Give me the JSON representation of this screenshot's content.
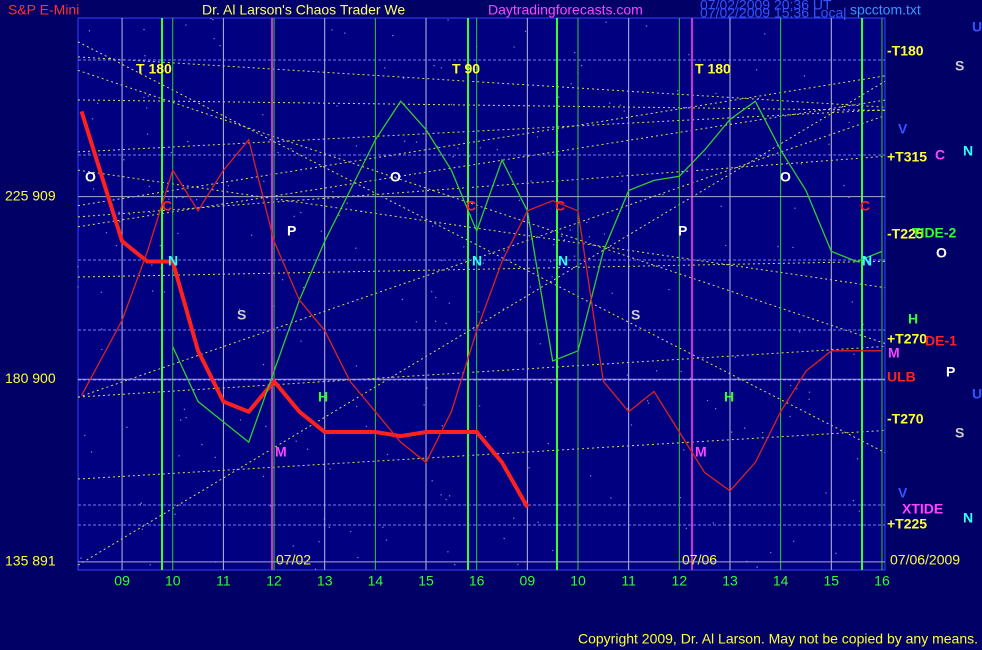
{
  "chart_data": {
    "type": "line",
    "title": "Dr. Al Larson's Chaos Trader We",
    "symbol": "S&P E-Mini",
    "site": "Daytradingforecasts.com",
    "file": "spcctom.txt",
    "stamp": [
      "07/02/2009 20:36 UT",
      "07/02/2009 15:36 Local"
    ],
    "copyright": "Copyright 2009, Dr. Al Larson. May not be copied by any means.",
    "date_labels": [
      "07/02",
      "07/06",
      "07/06/2009"
    ],
    "x": [
      -0.8,
      0,
      0.5,
      1,
      1.5,
      2,
      2.5,
      3,
      3.5,
      4,
      4.5,
      5,
      5.5,
      6,
      6.5,
      7,
      7.5,
      8,
      8.5,
      9,
      9.5,
      10,
      10.5,
      11,
      11.5,
      12,
      12.5,
      13,
      13.5,
      14,
      14.5,
      15
    ],
    "xlim": [
      -0.87,
      15.06
    ],
    "xticks": [
      {
        "value": 0,
        "label": "09"
      },
      {
        "value": 1,
        "label": "10"
      },
      {
        "value": 2,
        "label": "11"
      },
      {
        "value": 3,
        "label": "12"
      },
      {
        "value": 4,
        "label": "13"
      },
      {
        "value": 5,
        "label": "14"
      },
      {
        "value": 6,
        "label": "15"
      },
      {
        "value": 7,
        "label": "16"
      },
      {
        "value": 8,
        "label": "09"
      },
      {
        "value": 9,
        "label": "10"
      },
      {
        "value": 10,
        "label": "11"
      },
      {
        "value": 11,
        "label": "12"
      },
      {
        "value": 12,
        "label": "13"
      },
      {
        "value": 13,
        "label": "14"
      },
      {
        "value": 14,
        "label": "15"
      },
      {
        "value": 15,
        "label": "16"
      }
    ],
    "ylim": [
      890.6,
      917.8
    ],
    "yticks": [
      {
        "value": 909,
        "label": "225  909"
      },
      {
        "value": 900,
        "label": "180  900"
      },
      {
        "value": 891,
        "label": "135  891"
      }
    ],
    "series": [
      {
        "color": "#ff2020",
        "values": [
          913.2,
          906.8,
          905.8,
          905.8,
          901.4,
          898.9,
          898.4,
          899.9,
          898.4,
          897.4,
          897.4,
          897.4,
          897.2,
          897.4,
          897.4,
          897.4,
          895.9,
          893.7,
          null,
          null,
          null,
          null,
          null,
          null,
          null,
          null,
          null,
          null,
          null,
          null,
          null,
          null
        ]
      },
      {
        "color": "#33cc33",
        "values": [
          null,
          null,
          null,
          901.6,
          898.9,
          897.9,
          896.9,
          900.4,
          903.9,
          906.8,
          909.3,
          911.8,
          913.7,
          912.3,
          910.3,
          907.3,
          910.8,
          908.3,
          900.9,
          901.4,
          906.3,
          909.3,
          909.8,
          910.0,
          911.3,
          912.8,
          913.7,
          911.3,
          909.3,
          906.3,
          905.8,
          906.3
        ]
      },
      {
        "color": "#dd2222",
        "values": [
          899.2,
          902.9,
          906.3,
          910.3,
          908.3,
          910.3,
          911.8,
          906.8,
          903.9,
          902.4,
          899.9,
          898.4,
          896.9,
          895.9,
          898.4,
          902.4,
          905.8,
          908.3,
          908.8,
          908.3,
          899.9,
          898.4,
          899.4,
          897.4,
          895.4,
          894.5,
          895.9,
          898.4,
          900.4,
          901.4,
          901.4,
          901.4
        ]
      }
    ],
    "annotations": [
      "T 180",
      "T 90",
      "T 180",
      "-T180",
      "+T315",
      "-T225",
      "+T270",
      "-T270",
      "+T225",
      "ULB",
      "TIDE-2",
      "XTIDE",
      "DE-1",
      "O",
      "O",
      "O",
      "C",
      "C",
      "C",
      "C",
      "N",
      "N",
      "N",
      "N",
      "P",
      "P",
      "S",
      "S",
      "M",
      "M",
      "H",
      "H",
      "U",
      "S",
      "V",
      "N",
      "C",
      "O",
      "H",
      "M",
      "P",
      "U",
      "S",
      "V",
      "N"
    ]
  }
}
